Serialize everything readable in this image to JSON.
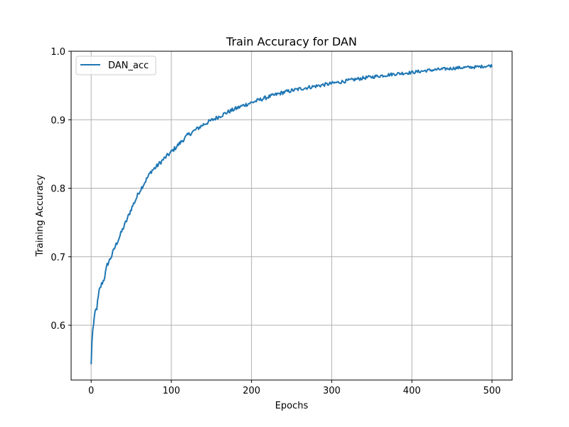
{
  "chart_data": {
    "type": "line",
    "title": "Train Accuracy for DAN",
    "xlabel": "Epochs",
    "ylabel": "Training Accuracy",
    "xlim": [
      -25,
      525
    ],
    "ylim": [
      0.52,
      1.0
    ],
    "xticks": [
      0,
      100,
      200,
      300,
      400,
      500
    ],
    "yticks": [
      0.6,
      0.7,
      0.8,
      0.9,
      1.0
    ],
    "xtick_labels": [
      "0",
      "100",
      "200",
      "300",
      "400",
      "500"
    ],
    "ytick_labels": [
      "0.6",
      "0.7",
      "0.8",
      "0.9",
      "1.0"
    ],
    "grid": true,
    "legend_position": "upper-left",
    "series": [
      {
        "name": "DAN_acc",
        "color": "#1f77b4",
        "x": [
          0,
          1,
          2,
          3,
          5,
          7,
          10,
          13,
          16,
          20,
          25,
          30,
          35,
          40,
          45,
          50,
          55,
          60,
          65,
          70,
          75,
          80,
          90,
          100,
          110,
          120,
          130,
          140,
          150,
          160,
          170,
          180,
          190,
          200,
          220,
          240,
          260,
          280,
          300,
          320,
          340,
          360,
          380,
          400,
          420,
          440,
          460,
          480,
          500
        ],
        "y": [
          0.543,
          0.575,
          0.595,
          0.6,
          0.62,
          0.625,
          0.65,
          0.66,
          0.667,
          0.688,
          0.7,
          0.715,
          0.728,
          0.742,
          0.755,
          0.77,
          0.782,
          0.795,
          0.805,
          0.815,
          0.825,
          0.83,
          0.842,
          0.853,
          0.865,
          0.877,
          0.885,
          0.893,
          0.899,
          0.905,
          0.911,
          0.916,
          0.921,
          0.925,
          0.933,
          0.94,
          0.945,
          0.949,
          0.953,
          0.957,
          0.961,
          0.964,
          0.967,
          0.969,
          0.972,
          0.974,
          0.976,
          0.977,
          0.979
        ]
      }
    ]
  }
}
